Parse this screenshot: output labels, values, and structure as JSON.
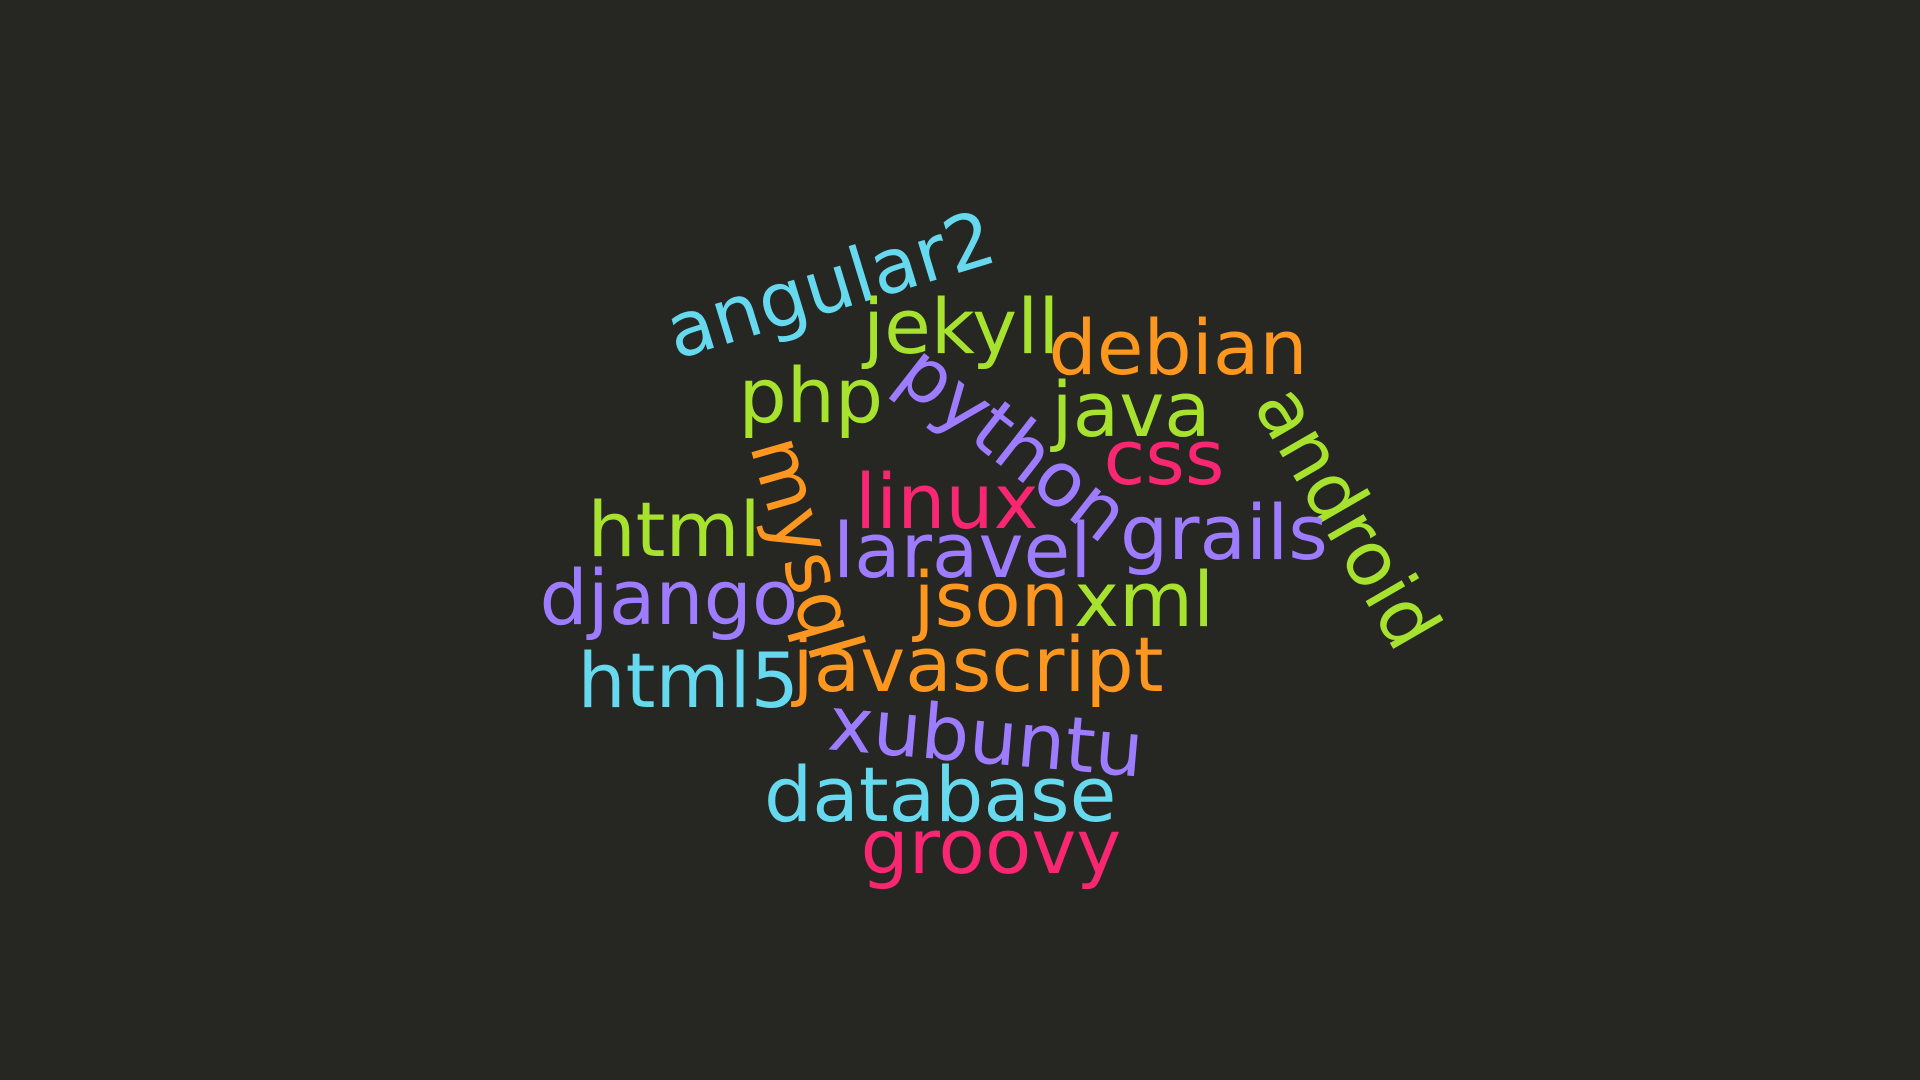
{
  "palette": {
    "background": "#262622",
    "cyan": "#66d9ef",
    "green": "#a6e22e",
    "orange": "#fd971f",
    "purple": "#9e7cff",
    "pink": "#f92672"
  },
  "words": [
    {
      "id": "angular2",
      "text": "angular2",
      "color": "#66d9ef"
    },
    {
      "id": "jekyll",
      "text": "jekyll",
      "color": "#a6e22e"
    },
    {
      "id": "debian",
      "text": "debian",
      "color": "#fd971f"
    },
    {
      "id": "php",
      "text": "php",
      "color": "#a6e22e"
    },
    {
      "id": "python",
      "text": "python",
      "color": "#9e7cff"
    },
    {
      "id": "java",
      "text": "java",
      "color": "#a6e22e"
    },
    {
      "id": "android",
      "text": "android",
      "color": "#a6e22e"
    },
    {
      "id": "mysql",
      "text": "mysql",
      "color": "#fd971f"
    },
    {
      "id": "css",
      "text": "css",
      "color": "#f92672"
    },
    {
      "id": "linux",
      "text": "linux",
      "color": "#f92672"
    },
    {
      "id": "html",
      "text": "html",
      "color": "#a6e22e"
    },
    {
      "id": "grails",
      "text": "grails",
      "color": "#9e7cff"
    },
    {
      "id": "laravel",
      "text": "laravel",
      "color": "#9e7cff"
    },
    {
      "id": "django",
      "text": "django",
      "color": "#9e7cff"
    },
    {
      "id": "json",
      "text": "json",
      "color": "#fd971f"
    },
    {
      "id": "xml",
      "text": "xml",
      "color": "#a6e22e"
    },
    {
      "id": "html5",
      "text": "html5",
      "color": "#66d9ef"
    },
    {
      "id": "javascript",
      "text": "javascript",
      "color": "#fd971f"
    },
    {
      "id": "xubuntu",
      "text": "xubuntu",
      "color": "#9e7cff"
    },
    {
      "id": "database",
      "text": "database",
      "color": "#66d9ef"
    },
    {
      "id": "groovy",
      "text": "groovy",
      "color": "#f92672"
    }
  ]
}
